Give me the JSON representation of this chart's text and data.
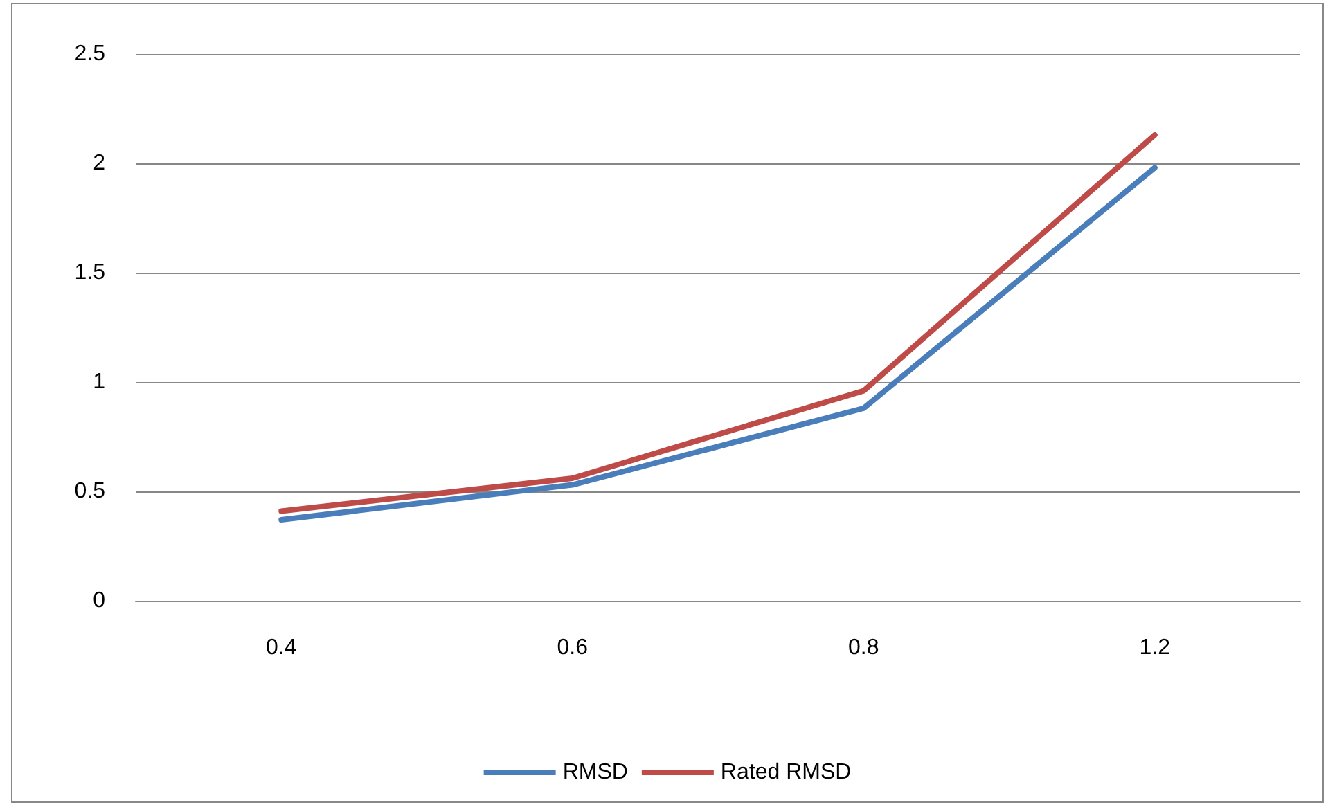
{
  "chart_data": {
    "type": "line",
    "categories": [
      "0.4",
      "0.6",
      "0.8",
      "1.2"
    ],
    "series": [
      {
        "name": "RMSD",
        "color": "#4a7ebb",
        "values": [
          0.37,
          0.53,
          0.88,
          1.98
        ]
      },
      {
        "name": "Rated RMSD",
        "color": "#be4b48",
        "values": [
          0.41,
          0.56,
          0.96,
          2.13
        ]
      }
    ],
    "ylim": [
      0,
      2.5
    ],
    "yticks": [
      0,
      0.5,
      1,
      1.5,
      2,
      2.5
    ],
    "grid": "y",
    "legend": "bottom",
    "marker": "none",
    "line_style": "solid"
  }
}
